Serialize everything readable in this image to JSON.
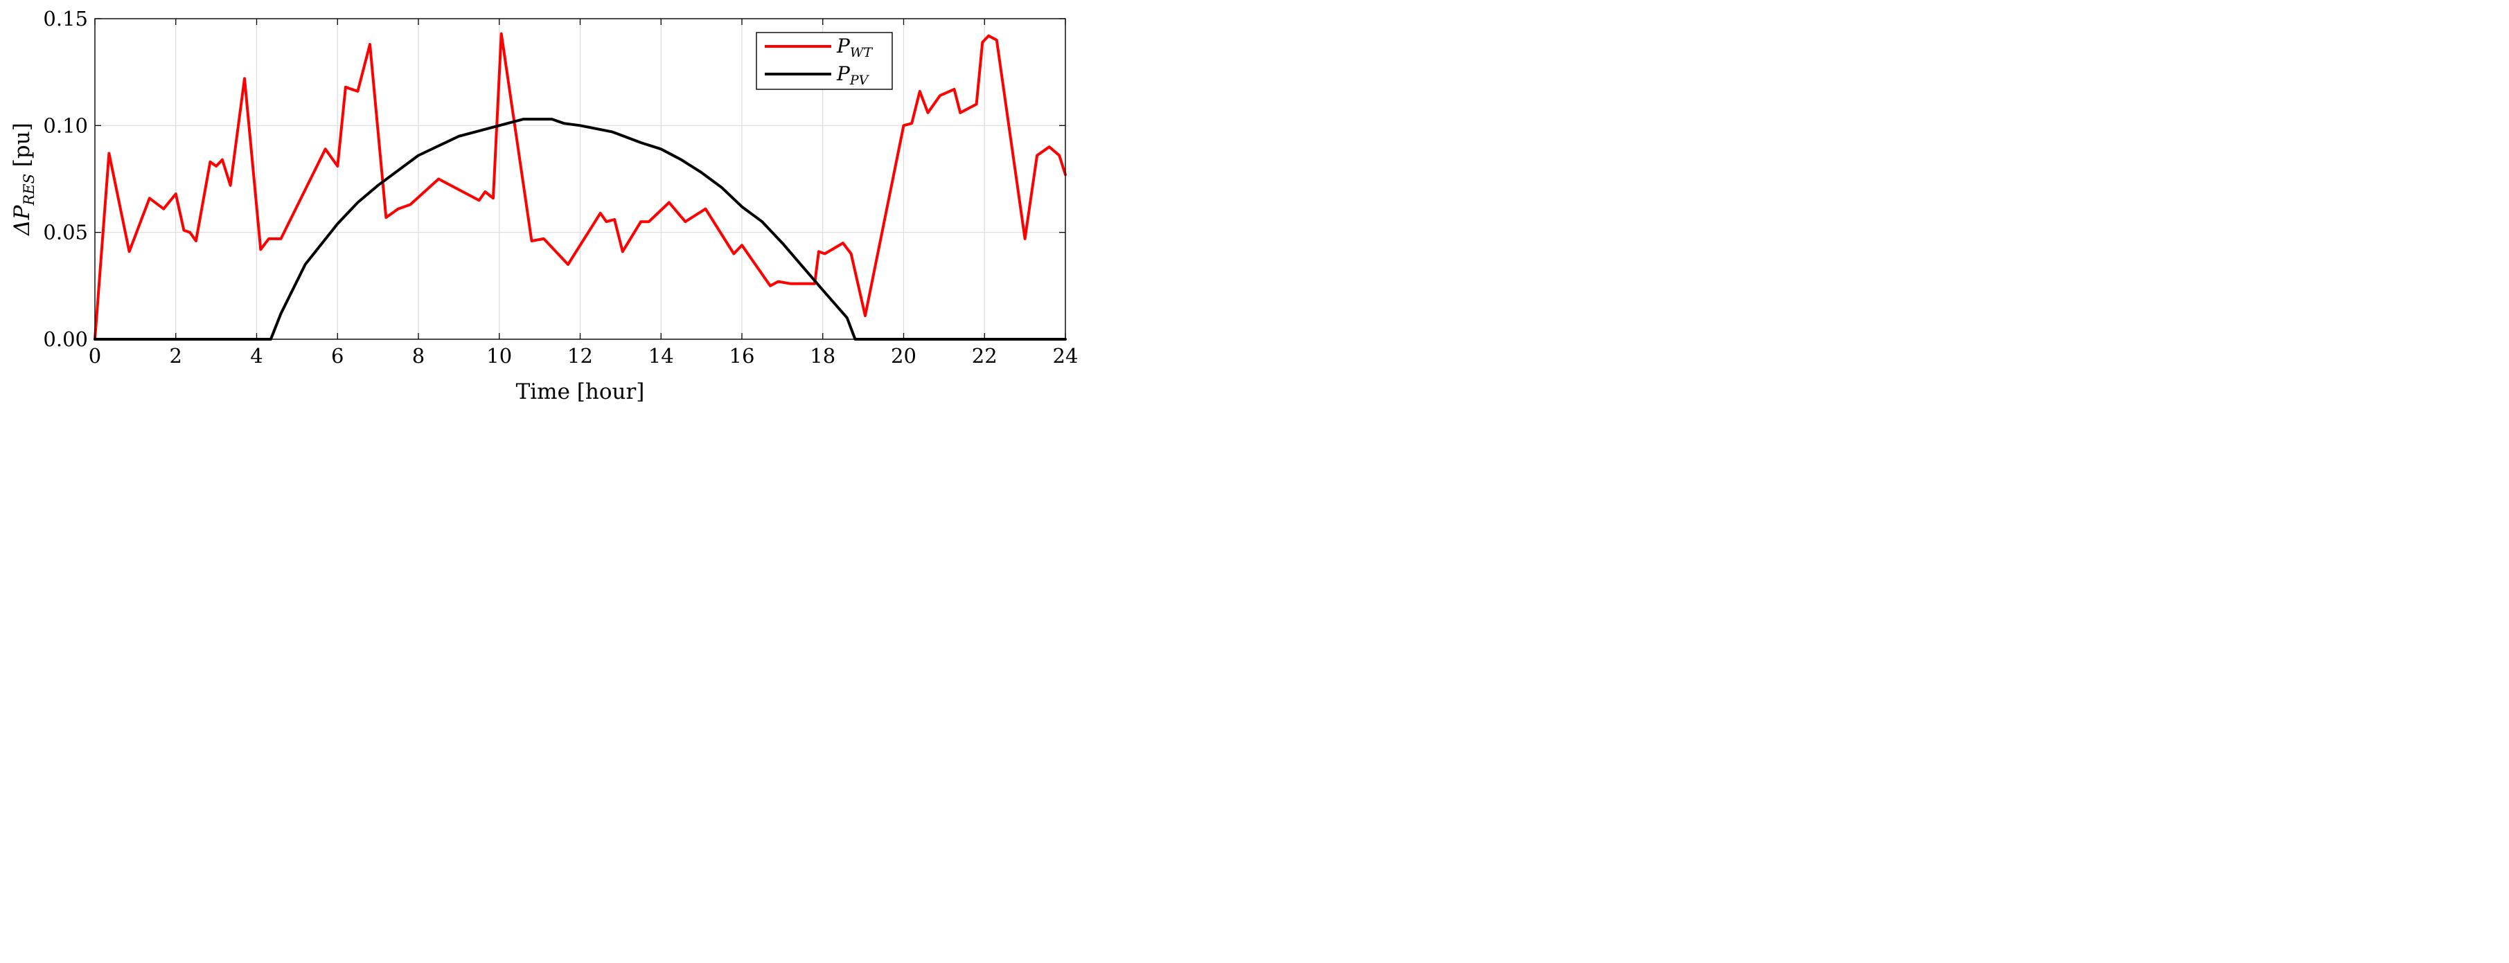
{
  "chart_data": {
    "type": "line",
    "xlabel": "Time [hour]",
    "ylabel": {
      "prefix": "ΔP",
      "sub": "RES",
      "unit": " [pu]"
    },
    "xlim": [
      0,
      24
    ],
    "ylim": [
      0,
      0.15
    ],
    "xticks": [
      0,
      2,
      4,
      6,
      8,
      10,
      12,
      14,
      16,
      18,
      20,
      22,
      24
    ],
    "xtick_labels": [
      "0",
      "2",
      "4",
      "6",
      "8",
      "10",
      "12",
      "14",
      "16",
      "18",
      "20",
      "22",
      "24"
    ],
    "yticks": [
      0,
      0.05,
      0.1,
      0.15
    ],
    "ytick_labels": [
      "0.00",
      "0.05",
      "0.10",
      "0.15"
    ],
    "grid": true,
    "legend_position": "top-right",
    "series": [
      {
        "name": "P_WT",
        "label_main": "P",
        "label_sub": "WT",
        "color": "#ff0000",
        "points": [
          [
            0,
            0
          ],
          [
            0.35,
            0.087
          ],
          [
            0.85,
            0.041
          ],
          [
            1.35,
            0.066
          ],
          [
            1.7,
            0.061
          ],
          [
            2.0,
            0.068
          ],
          [
            2.2,
            0.051
          ],
          [
            2.35,
            0.05
          ],
          [
            2.5,
            0.046
          ],
          [
            2.85,
            0.083
          ],
          [
            3.0,
            0.081
          ],
          [
            3.15,
            0.084
          ],
          [
            3.35,
            0.072
          ],
          [
            3.7,
            0.122
          ],
          [
            4.1,
            0.042
          ],
          [
            4.3,
            0.047
          ],
          [
            4.6,
            0.047
          ],
          [
            5.7,
            0.089
          ],
          [
            6.0,
            0.081
          ],
          [
            6.2,
            0.118
          ],
          [
            6.5,
            0.116
          ],
          [
            6.8,
            0.138
          ],
          [
            7.2,
            0.057
          ],
          [
            7.5,
            0.061
          ],
          [
            7.8,
            0.063
          ],
          [
            8.5,
            0.075
          ],
          [
            9.5,
            0.065
          ],
          [
            9.65,
            0.069
          ],
          [
            9.85,
            0.066
          ],
          [
            10.05,
            0.143
          ],
          [
            10.8,
            0.046
          ],
          [
            11.1,
            0.047
          ],
          [
            11.7,
            0.035
          ],
          [
            12.5,
            0.059
          ],
          [
            12.65,
            0.055
          ],
          [
            12.85,
            0.056
          ],
          [
            13.05,
            0.041
          ],
          [
            13.5,
            0.055
          ],
          [
            13.7,
            0.055
          ],
          [
            14.2,
            0.064
          ],
          [
            14.6,
            0.055
          ],
          [
            15.1,
            0.061
          ],
          [
            15.8,
            0.04
          ],
          [
            16.0,
            0.044
          ],
          [
            16.7,
            0.025
          ],
          [
            16.9,
            0.027
          ],
          [
            17.2,
            0.026
          ],
          [
            17.8,
            0.026
          ],
          [
            17.9,
            0.041
          ],
          [
            18.05,
            0.04
          ],
          [
            18.5,
            0.045
          ],
          [
            18.7,
            0.04
          ],
          [
            19.05,
            0.011
          ],
          [
            20.0,
            0.1
          ],
          [
            20.2,
            0.101
          ],
          [
            20.4,
            0.116
          ],
          [
            20.6,
            0.106
          ],
          [
            20.9,
            0.114
          ],
          [
            21.25,
            0.117
          ],
          [
            21.4,
            0.106
          ],
          [
            21.8,
            0.11
          ],
          [
            21.95,
            0.139
          ],
          [
            22.1,
            0.142
          ],
          [
            22.3,
            0.14
          ],
          [
            23.0,
            0.047
          ],
          [
            23.3,
            0.086
          ],
          [
            23.6,
            0.09
          ],
          [
            23.85,
            0.086
          ],
          [
            24.0,
            0.077
          ]
        ]
      },
      {
        "name": "P_PV",
        "label_main": "P",
        "label_sub": "PV",
        "color": "#000000",
        "points": [
          [
            0,
            0
          ],
          [
            4.35,
            0
          ],
          [
            4.6,
            0.012
          ],
          [
            5.2,
            0.035
          ],
          [
            6.0,
            0.054
          ],
          [
            6.5,
            0.064
          ],
          [
            7.0,
            0.072
          ],
          [
            8.0,
            0.086
          ],
          [
            9.0,
            0.095
          ],
          [
            10.0,
            0.1
          ],
          [
            10.6,
            0.103
          ],
          [
            11.3,
            0.103
          ],
          [
            11.6,
            0.101
          ],
          [
            12.0,
            0.1
          ],
          [
            12.8,
            0.097
          ],
          [
            13.5,
            0.092
          ],
          [
            14.0,
            0.089
          ],
          [
            14.5,
            0.084
          ],
          [
            15.0,
            0.078
          ],
          [
            15.5,
            0.071
          ],
          [
            16.0,
            0.062
          ],
          [
            16.5,
            0.055
          ],
          [
            17.0,
            0.045
          ],
          [
            17.5,
            0.034
          ],
          [
            18.0,
            0.023
          ],
          [
            18.6,
            0.01
          ],
          [
            18.8,
            0
          ],
          [
            24,
            0
          ]
        ]
      }
    ]
  }
}
